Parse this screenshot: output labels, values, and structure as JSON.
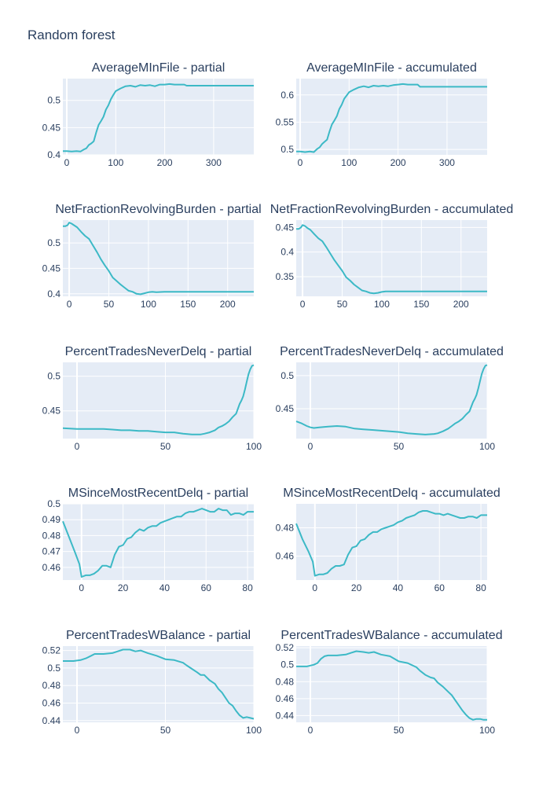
{
  "page": {
    "title": "Random forest"
  },
  "colors": {
    "line": "#3cb9c6",
    "plot_bg": "#e5ecf6",
    "grid": "#ffffff",
    "text": "#2a3f5f"
  },
  "chart_data": [
    {
      "type": "line",
      "title": "AverageMInFile - partial",
      "xlim": [
        -8,
        382
      ],
      "ylim": [
        0.4,
        0.54
      ],
      "xticks": [
        0,
        100,
        200,
        300
      ],
      "xticklabels": [
        "0",
        "100",
        "200",
        "300"
      ],
      "yticks": [
        0.4,
        0.45,
        0.5
      ],
      "yticklabels": [
        "0.4",
        "0.45",
        "0.5"
      ],
      "x": [
        -8,
        0,
        10,
        20,
        28,
        35,
        40,
        45,
        50,
        55,
        60,
        65,
        70,
        75,
        80,
        85,
        90,
        95,
        100,
        110,
        120,
        130,
        140,
        150,
        160,
        170,
        180,
        190,
        200,
        210,
        220,
        240,
        245,
        260,
        300,
        382
      ],
      "y": [
        0.407,
        0.407,
        0.406,
        0.407,
        0.406,
        0.41,
        0.412,
        0.418,
        0.421,
        0.425,
        0.441,
        0.455,
        0.462,
        0.47,
        0.483,
        0.491,
        0.502,
        0.51,
        0.517,
        0.522,
        0.526,
        0.527,
        0.525,
        0.528,
        0.527,
        0.528,
        0.526,
        0.529,
        0.529,
        0.53,
        0.529,
        0.529,
        0.527,
        0.527,
        0.527,
        0.527
      ]
    },
    {
      "type": "line",
      "title": "AverageMInFile - accumulated",
      "xlim": [
        -8,
        382
      ],
      "ylim": [
        0.49,
        0.63
      ],
      "xticks": [
        0,
        100,
        200,
        300
      ],
      "xticklabels": [
        "0",
        "100",
        "200",
        "300"
      ],
      "yticks": [
        0.5,
        0.55,
        0.6
      ],
      "yticklabels": [
        "0.5",
        "0.55",
        "0.6"
      ],
      "x": [
        -8,
        0,
        10,
        20,
        28,
        35,
        40,
        45,
        50,
        55,
        60,
        65,
        70,
        75,
        80,
        85,
        90,
        95,
        100,
        110,
        120,
        130,
        140,
        150,
        160,
        170,
        180,
        190,
        200,
        210,
        220,
        240,
        245,
        260,
        300,
        382
      ],
      "y": [
        0.496,
        0.496,
        0.495,
        0.496,
        0.495,
        0.501,
        0.504,
        0.51,
        0.514,
        0.518,
        0.533,
        0.546,
        0.553,
        0.561,
        0.574,
        0.582,
        0.593,
        0.599,
        0.605,
        0.61,
        0.614,
        0.616,
        0.614,
        0.617,
        0.616,
        0.617,
        0.616,
        0.618,
        0.619,
        0.62,
        0.619,
        0.619,
        0.615,
        0.615,
        0.615,
        0.615
      ]
    },
    {
      "type": "line",
      "title": "NetFractionRevolvingBurden - partial",
      "xlim": [
        -8,
        233
      ],
      "ylim": [
        0.395,
        0.545
      ],
      "xticks": [
        0,
        50,
        100,
        150,
        200
      ],
      "xticklabels": [
        "0",
        "50",
        "100",
        "150",
        "200"
      ],
      "yticks": [
        0.4,
        0.45,
        0.5
      ],
      "yticklabels": [
        "0.4",
        "0.45",
        "0.5"
      ],
      "x": [
        -8,
        -5,
        -2,
        0,
        3,
        6,
        10,
        15,
        20,
        25,
        30,
        35,
        40,
        45,
        50,
        55,
        60,
        65,
        70,
        75,
        80,
        85,
        90,
        95,
        100,
        105,
        110,
        120,
        130,
        150,
        180,
        200,
        233
      ],
      "y": [
        0.533,
        0.533,
        0.535,
        0.54,
        0.538,
        0.535,
        0.531,
        0.522,
        0.514,
        0.508,
        0.495,
        0.482,
        0.468,
        0.456,
        0.445,
        0.432,
        0.425,
        0.418,
        0.412,
        0.406,
        0.404,
        0.4,
        0.399,
        0.401,
        0.403,
        0.404,
        0.403,
        0.404,
        0.404,
        0.404,
        0.404,
        0.404,
        0.404
      ]
    },
    {
      "type": "line",
      "title": "NetFractionRevolvingBurden - accumulated",
      "xlim": [
        -8,
        233
      ],
      "ylim": [
        0.31,
        0.465
      ],
      "xticks": [
        0,
        50,
        100,
        150,
        200
      ],
      "xticklabels": [
        "0",
        "50",
        "100",
        "150",
        "200"
      ],
      "yticks": [
        0.35,
        0.4,
        0.45
      ],
      "yticklabels": [
        "0.35",
        "0.4",
        "0.45"
      ],
      "x": [
        -8,
        -5,
        -2,
        0,
        3,
        6,
        10,
        15,
        20,
        25,
        30,
        35,
        40,
        45,
        50,
        55,
        60,
        65,
        70,
        75,
        80,
        85,
        90,
        95,
        100,
        105,
        110,
        120,
        130,
        150,
        180,
        200,
        233
      ],
      "y": [
        0.447,
        0.447,
        0.45,
        0.455,
        0.453,
        0.449,
        0.445,
        0.436,
        0.428,
        0.422,
        0.41,
        0.397,
        0.384,
        0.373,
        0.362,
        0.349,
        0.342,
        0.334,
        0.328,
        0.322,
        0.32,
        0.317,
        0.316,
        0.317,
        0.319,
        0.32,
        0.32,
        0.32,
        0.32,
        0.32,
        0.32,
        0.32,
        0.32
      ]
    },
    {
      "type": "line",
      "title": "PercentTradesNeverDelq - partial",
      "xlim": [
        -8,
        100
      ],
      "ylim": [
        0.41,
        0.52
      ],
      "xticks": [
        0,
        50,
        100
      ],
      "xticklabels": [
        "0",
        "50",
        "100"
      ],
      "yticks": [
        0.45,
        0.5
      ],
      "yticklabels": [
        "0.45",
        "0.5"
      ],
      "x": [
        -8,
        0,
        5,
        10,
        15,
        20,
        25,
        30,
        35,
        40,
        45,
        50,
        55,
        60,
        65,
        70,
        72,
        75,
        78,
        80,
        82,
        84,
        86,
        88,
        90,
        92,
        93,
        94,
        95,
        96,
        97,
        98,
        99,
        100
      ],
      "y": [
        0.425,
        0.424,
        0.424,
        0.424,
        0.424,
        0.423,
        0.422,
        0.422,
        0.421,
        0.421,
        0.42,
        0.419,
        0.419,
        0.417,
        0.416,
        0.416,
        0.417,
        0.419,
        0.422,
        0.426,
        0.428,
        0.431,
        0.435,
        0.441,
        0.446,
        0.46,
        0.465,
        0.471,
        0.481,
        0.492,
        0.503,
        0.51,
        0.515,
        0.516
      ]
    },
    {
      "type": "line",
      "title": "PercentTradesNeverDelq - accumulated",
      "xlim": [
        -8,
        100
      ],
      "ylim": [
        0.405,
        0.52
      ],
      "xticks": [
        0,
        50,
        100
      ],
      "xticklabels": [
        "0",
        "50",
        "100"
      ],
      "yticks": [
        0.45,
        0.5
      ],
      "yticklabels": [
        "0.45",
        "0.5"
      ],
      "x": [
        -8,
        -5,
        -2,
        0,
        2,
        5,
        10,
        15,
        20,
        25,
        30,
        35,
        40,
        45,
        50,
        55,
        60,
        65,
        70,
        72,
        75,
        78,
        80,
        82,
        84,
        86,
        88,
        90,
        92,
        93,
        94,
        95,
        96,
        97,
        98,
        99,
        100
      ],
      "y": [
        0.431,
        0.428,
        0.424,
        0.422,
        0.421,
        0.422,
        0.423,
        0.424,
        0.423,
        0.42,
        0.419,
        0.418,
        0.417,
        0.416,
        0.415,
        0.413,
        0.412,
        0.411,
        0.412,
        0.413,
        0.416,
        0.42,
        0.424,
        0.428,
        0.431,
        0.435,
        0.441,
        0.446,
        0.46,
        0.465,
        0.471,
        0.481,
        0.492,
        0.503,
        0.51,
        0.515,
        0.516
      ]
    },
    {
      "type": "line",
      "title": "MSinceMostRecentDelq - partial",
      "xlim": [
        -9,
        83
      ],
      "ylim": [
        0.452,
        0.5
      ],
      "xticks": [
        0,
        20,
        40,
        60,
        80
      ],
      "xticklabels": [
        "0",
        "20",
        "40",
        "60",
        "80"
      ],
      "yticks": [
        0.46,
        0.47,
        0.48,
        0.49,
        0.5
      ],
      "yticklabels": [
        "0.46",
        "0.47",
        "0.48",
        "0.49",
        "0.5"
      ],
      "x": [
        -9,
        -6,
        -3,
        -1,
        0,
        2,
        4,
        6,
        8,
        10,
        12,
        14,
        16,
        18,
        20,
        22,
        24,
        26,
        28,
        30,
        32,
        34,
        36,
        38,
        40,
        42,
        44,
        46,
        48,
        50,
        52,
        54,
        56,
        58,
        60,
        62,
        64,
        66,
        68,
        70,
        72,
        74,
        76,
        78,
        80,
        83
      ],
      "y": [
        0.489,
        0.479,
        0.469,
        0.462,
        0.454,
        0.455,
        0.455,
        0.456,
        0.458,
        0.461,
        0.461,
        0.46,
        0.468,
        0.473,
        0.474,
        0.478,
        0.479,
        0.482,
        0.484,
        0.483,
        0.485,
        0.486,
        0.486,
        0.488,
        0.489,
        0.49,
        0.491,
        0.492,
        0.492,
        0.494,
        0.495,
        0.495,
        0.496,
        0.497,
        0.496,
        0.495,
        0.495,
        0.497,
        0.496,
        0.496,
        0.493,
        0.494,
        0.494,
        0.493,
        0.495,
        0.495
      ]
    },
    {
      "type": "line",
      "title": "MSinceMostRecentDelq - accumulated",
      "xlim": [
        -9,
        83
      ],
      "ylim": [
        0.443,
        0.497
      ],
      "xticks": [
        0,
        20,
        40,
        60,
        80
      ],
      "xticklabels": [
        "0",
        "20",
        "40",
        "60",
        "80"
      ],
      "yticks": [
        0.46,
        0.48
      ],
      "yticklabels": [
        "0.46",
        "0.48"
      ],
      "x": [
        -9,
        -6,
        -3,
        -1,
        0,
        2,
        4,
        6,
        8,
        10,
        12,
        14,
        16,
        18,
        20,
        22,
        24,
        26,
        28,
        30,
        32,
        34,
        36,
        38,
        40,
        42,
        44,
        46,
        48,
        50,
        52,
        54,
        56,
        58,
        60,
        62,
        64,
        66,
        68,
        70,
        72,
        74,
        76,
        78,
        80,
        83
      ],
      "y": [
        0.483,
        0.472,
        0.463,
        0.456,
        0.446,
        0.447,
        0.447,
        0.448,
        0.451,
        0.453,
        0.453,
        0.454,
        0.461,
        0.466,
        0.467,
        0.471,
        0.472,
        0.475,
        0.477,
        0.477,
        0.479,
        0.48,
        0.481,
        0.482,
        0.484,
        0.485,
        0.487,
        0.488,
        0.489,
        0.491,
        0.492,
        0.492,
        0.491,
        0.49,
        0.49,
        0.489,
        0.49,
        0.489,
        0.488,
        0.487,
        0.487,
        0.488,
        0.488,
        0.487,
        0.489,
        0.489
      ]
    },
    {
      "type": "line",
      "title": "PercentTradesWBalance - partial",
      "xlim": [
        -8,
        100
      ],
      "ylim": [
        0.438,
        0.525
      ],
      "xticks": [
        0,
        50,
        100
      ],
      "xticklabels": [
        "0",
        "50",
        "100"
      ],
      "yticks": [
        0.44,
        0.46,
        0.48,
        0.5,
        0.52
      ],
      "yticklabels": [
        "0.44",
        "0.46",
        "0.48",
        "0.5",
        "0.52"
      ],
      "x": [
        -8,
        -2,
        2,
        5,
        8,
        10,
        15,
        20,
        23,
        26,
        30,
        33,
        36,
        40,
        45,
        50,
        55,
        60,
        62,
        65,
        68,
        70,
        72,
        75,
        78,
        80,
        82,
        84,
        86,
        88,
        90,
        92,
        94,
        96,
        98,
        100
      ],
      "y": [
        0.508,
        0.508,
        0.509,
        0.511,
        0.514,
        0.516,
        0.516,
        0.517,
        0.519,
        0.521,
        0.521,
        0.519,
        0.52,
        0.517,
        0.514,
        0.51,
        0.509,
        0.506,
        0.503,
        0.499,
        0.495,
        0.492,
        0.492,
        0.486,
        0.482,
        0.476,
        0.472,
        0.466,
        0.46,
        0.457,
        0.451,
        0.446,
        0.443,
        0.444,
        0.443,
        0.442
      ]
    },
    {
      "type": "line",
      "title": "PercentTradesWBalance - accumulated",
      "xlim": [
        -8,
        100
      ],
      "ylim": [
        0.432,
        0.522
      ],
      "xticks": [
        0,
        50,
        100
      ],
      "xticklabels": [
        "0",
        "50",
        "100"
      ],
      "yticks": [
        0.44,
        0.46,
        0.48,
        0.5,
        0.52
      ],
      "yticklabels": [
        "0.44",
        "0.46",
        "0.48",
        "0.5",
        "0.52"
      ],
      "x": [
        -8,
        -2,
        0,
        2,
        4,
        6,
        8,
        10,
        15,
        20,
        23,
        26,
        30,
        33,
        36,
        40,
        45,
        50,
        55,
        60,
        62,
        65,
        68,
        70,
        72,
        75,
        78,
        80,
        82,
        84,
        86,
        88,
        90,
        92,
        94,
        96,
        98,
        100
      ],
      "y": [
        0.498,
        0.498,
        0.499,
        0.5,
        0.502,
        0.507,
        0.51,
        0.511,
        0.511,
        0.512,
        0.514,
        0.516,
        0.515,
        0.514,
        0.515,
        0.512,
        0.51,
        0.504,
        0.502,
        0.497,
        0.493,
        0.488,
        0.485,
        0.484,
        0.479,
        0.474,
        0.468,
        0.464,
        0.458,
        0.452,
        0.446,
        0.441,
        0.437,
        0.435,
        0.436,
        0.436,
        0.435,
        0.435
      ]
    }
  ]
}
